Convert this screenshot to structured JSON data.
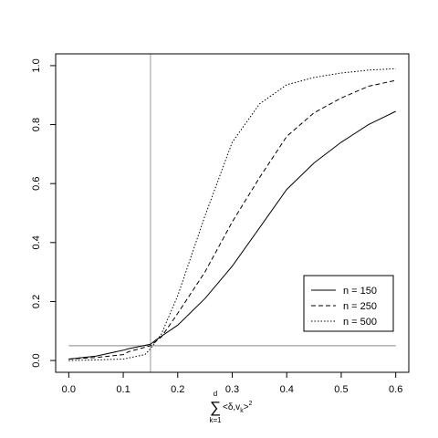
{
  "chart_data": {
    "type": "line",
    "title": "",
    "xlabel": {
      "sum_symbol": "∑",
      "upper_limit": "d",
      "lower_limit": "k=1",
      "term_prefix": "<δ,v",
      "term_subscript": "k",
      "term_suffix": ">",
      "term_power": "2"
    },
    "ylabel": "",
    "xlim": [
      -0.024,
      0.624
    ],
    "ylim": [
      -0.04,
      1.04
    ],
    "xticks": [
      0.0,
      0.1,
      0.2,
      0.3,
      0.4,
      0.5,
      0.6
    ],
    "xtick_labels": [
      "0.0",
      "0.1",
      "0.2",
      "0.3",
      "0.4",
      "0.5",
      "0.6"
    ],
    "yticks": [
      0.0,
      0.2,
      0.4,
      0.6,
      0.8,
      1.0
    ],
    "ytick_labels": [
      "0.0",
      "0.2",
      "0.4",
      "0.6",
      "0.8",
      "1.0"
    ],
    "grid": false,
    "legend_position": "bottom-right",
    "reference_lines": [
      {
        "orientation": "vertical",
        "value": 0.15,
        "color": "#999999"
      },
      {
        "orientation": "horizontal",
        "value": 0.05,
        "color": "#888888"
      }
    ],
    "series": [
      {
        "name": "n = 150",
        "style": "solid",
        "x": [
          0.0,
          0.05,
          0.1,
          0.11,
          0.15,
          0.16,
          0.2,
          0.25,
          0.3,
          0.35,
          0.4,
          0.45,
          0.5,
          0.55,
          0.6
        ],
        "y": [
          0.005,
          0.015,
          0.035,
          0.04,
          0.055,
          0.07,
          0.12,
          0.21,
          0.32,
          0.45,
          0.58,
          0.67,
          0.74,
          0.8,
          0.845
        ]
      },
      {
        "name": "n = 250",
        "style": "dashed",
        "x": [
          0.0,
          0.05,
          0.1,
          0.11,
          0.15,
          0.17,
          0.2,
          0.25,
          0.3,
          0.35,
          0.4,
          0.45,
          0.5,
          0.55,
          0.6
        ],
        "y": [
          0.005,
          0.01,
          0.02,
          0.03,
          0.05,
          0.08,
          0.16,
          0.3,
          0.47,
          0.62,
          0.76,
          0.84,
          0.89,
          0.93,
          0.95
        ]
      },
      {
        "name": "n = 500",
        "style": "dotted",
        "x": [
          0.0,
          0.05,
          0.1,
          0.14,
          0.15,
          0.17,
          0.2,
          0.25,
          0.3,
          0.35,
          0.4,
          0.45,
          0.5,
          0.55,
          0.6
        ],
        "y": [
          0.0,
          0.002,
          0.005,
          0.02,
          0.04,
          0.09,
          0.22,
          0.49,
          0.74,
          0.87,
          0.935,
          0.96,
          0.975,
          0.985,
          0.99
        ]
      }
    ]
  }
}
